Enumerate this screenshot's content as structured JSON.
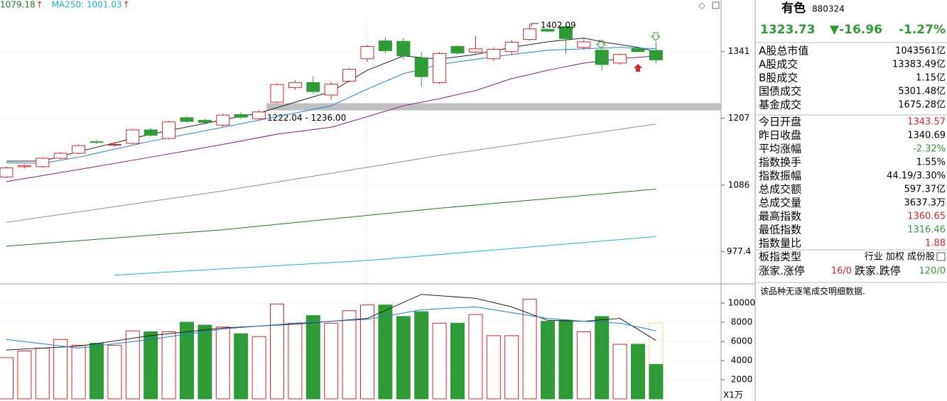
{
  "chart_data": [
    {
      "type": "candlestick",
      "log_scale": true,
      "ylim": [
        929,
        1455
      ],
      "yticks": [
        977.4,
        1086,
        1207,
        1341
      ],
      "up_color": "#e0222b",
      "down_color": "#2e9b36",
      "open": [
        1100,
        1118,
        1118,
        1133,
        1142,
        1163,
        1157,
        1160,
        1185,
        1169,
        1208,
        1203,
        1194,
        1214,
        1206,
        1238,
        1267,
        1277,
        1252,
        1280,
        1326,
        1364,
        1363,
        1328,
        1277,
        1352,
        1340,
        1326,
        1341,
        1367,
        1389,
        1395,
        1350,
        1344,
        1317,
        1347,
        1343.57
      ],
      "high": [
        1119,
        1122,
        1135,
        1144,
        1158,
        1166,
        1161,
        1187,
        1188,
        1202,
        1211,
        1206,
        1216,
        1218,
        1222.04,
        1276,
        1282,
        1290,
        1278,
        1307,
        1355,
        1372,
        1370,
        1340,
        1340,
        1355,
        1375,
        1350,
        1366,
        1402.09,
        1392,
        1400,
        1368,
        1347,
        1337,
        1352,
        1360.65
      ],
      "low": [
        1098,
        1115,
        1116,
        1131,
        1140,
        1159,
        1154,
        1158,
        1173,
        1167,
        1198,
        1195,
        1191,
        1206,
        1203,
        1236,
        1262,
        1255,
        1243,
        1277,
        1320,
        1337,
        1325,
        1268,
        1274,
        1335,
        1337,
        1322,
        1333,
        1364,
        1383,
        1336,
        1345,
        1301,
        1314,
        1340,
        1316.46
      ],
      "close": [
        1116,
        1120,
        1133,
        1142,
        1156,
        1162,
        1158,
        1185,
        1175,
        1200,
        1201,
        1199,
        1213,
        1209,
        1219,
        1273,
        1277,
        1259,
        1274,
        1304,
        1352,
        1343,
        1332,
        1289,
        1337,
        1338,
        1347,
        1346,
        1361,
        1390,
        1385,
        1369,
        1362,
        1314,
        1335,
        1341,
        1323.73
      ],
      "lines": [
        {
          "color": "#222222",
          "x": [
            0,
            2,
            4,
            8,
            12,
            14,
            16,
            18,
            20,
            22,
            24,
            26,
            28,
            30,
            32,
            33,
            35,
            36
          ],
          "values": [
            1128,
            1128,
            1145,
            1177,
            1204,
            1217,
            1238,
            1259,
            1302,
            1332,
            1325,
            1335,
            1350,
            1362,
            1370,
            1362,
            1350,
            1341
          ]
        },
        {
          "color": "#1f7fd0",
          "x": [
            0,
            2,
            4,
            8,
            12,
            15,
            18,
            20,
            22,
            24,
            26,
            28,
            30,
            32,
            34,
            36
          ],
          "values": [
            1125,
            1124,
            1135,
            1164,
            1190,
            1210,
            1231,
            1264,
            1295,
            1314,
            1325,
            1335,
            1344,
            1347,
            1350,
            1347
          ]
        },
        {
          "color": "#8a1a8a",
          "x": [
            0,
            4,
            8,
            12,
            15,
            18,
            20,
            22,
            24,
            26,
            28,
            30,
            32,
            34,
            36
          ],
          "values": [
            1092,
            1113,
            1135,
            1158,
            1177,
            1190,
            1210,
            1231,
            1245,
            1261,
            1285,
            1302,
            1317,
            1326,
            1332
          ]
        },
        {
          "color": "#8c8c8c",
          "x": [
            0,
            12,
            24,
            36
          ],
          "values": [
            1024,
            1076,
            1138,
            1196
          ]
        },
        {
          "color": "#1f7a1f",
          "x": [
            0,
            12,
            24,
            36
          ],
          "values": [
            986,
            1012,
            1047,
            1079.18
          ]
        },
        {
          "color": "#1ab8c4",
          "x": [
            6,
            20,
            36
          ],
          "values": [
            942,
            964,
            1001.03
          ]
        }
      ],
      "indicators": [
        {
          "text": "1079.18",
          "arrow": "↑",
          "color": "#1f7a1f"
        },
        {
          "text": "MA250: 1001.03",
          "arrow": "↑",
          "color": "#1ab8c4"
        }
      ],
      "high_label": {
        "value": 1402.09,
        "label": "1402.09"
      },
      "gap": {
        "low": 1222.04,
        "high": 1236.0,
        "label": "1222.04 - 1236.00",
        "color": "#c0c0c0"
      }
    },
    {
      "type": "bar",
      "ylim": [
        0,
        12000
      ],
      "yticks": [
        2000,
        4000,
        6000,
        8000,
        10000
      ],
      "unit": "X1万",
      "values": [
        4300,
        5000,
        5300,
        6200,
        5600,
        5800,
        5600,
        7100,
        7000,
        7000,
        8000,
        7700,
        7500,
        6800,
        6500,
        9900,
        7900,
        8700,
        7900,
        9200,
        9800,
        9800,
        8600,
        9100,
        7900,
        7900,
        8800,
        6600,
        6600,
        10400,
        8100,
        8200,
        7000,
        8600,
        5700,
        5700,
        3600
      ],
      "projected": 7900,
      "lines": [
        {
          "color": "#222222",
          "x": [
            0,
            4,
            8,
            12,
            16,
            20,
            23,
            26,
            28,
            30,
            32,
            34,
            36
          ],
          "values": [
            5100,
            5500,
            6600,
            7400,
            7800,
            8400,
            10900,
            10500,
            9600,
            8200,
            8100,
            8400,
            6100
          ]
        },
        {
          "color": "#1f7fd0",
          "x": [
            0,
            4,
            8,
            12,
            16,
            20,
            23,
            26,
            28,
            30,
            32,
            34,
            36
          ],
          "values": [
            6200,
            5300,
            6200,
            7300,
            7900,
            8300,
            9300,
            9600,
            9000,
            8400,
            8100,
            7900,
            7100
          ]
        }
      ]
    }
  ],
  "panel": {
    "name": "有色",
    "code": "880324",
    "price": "1323.73",
    "change": "▼-16.96",
    "change_pct": "-1.27%",
    "rows_a": [
      [
        "A股总市值",
        "1043561亿"
      ],
      [
        "A股成交",
        "13383.49亿"
      ],
      [
        "B股成交",
        "1.15亿"
      ],
      [
        "国债成交",
        "5301.48亿"
      ],
      [
        "基金成交",
        "1675.28亿"
      ]
    ],
    "rows_b": [
      {
        "label": "今日开盘",
        "value": "1343.57",
        "color": "#e0222b"
      },
      {
        "label": "昨日收盘",
        "value": "1340.69",
        "color": "#000000"
      },
      {
        "label": "平均涨幅",
        "value": "-2.32%",
        "color": "#2e9b36"
      },
      {
        "label": "指数换手",
        "value": "1.55%",
        "color": "#000000"
      },
      {
        "label": "指数振幅",
        "value": "44.19/3.30%",
        "color": "#000000"
      },
      {
        "label": "总成交额",
        "value": "597.37亿",
        "color": "#000000"
      },
      {
        "label": "总成交量",
        "value": "3637.3万",
        "color": "#000000"
      },
      {
        "label": "最高指数",
        "value": "1360.65",
        "color": "#e0222b"
      },
      {
        "label": "最低指数",
        "value": "1316.46",
        "color": "#2e9b36"
      },
      {
        "label": "指数量比",
        "value": "1.88",
        "color": "#e0222b"
      }
    ],
    "type_label": "板指类型",
    "type_value": "行业 加权 成份股",
    "up_label": "涨家.涨停",
    "up_value": "16/0",
    "down_label": "跌家.跌停",
    "down_value": "120/0",
    "note": "该品种无逐笔成交明细数据."
  }
}
